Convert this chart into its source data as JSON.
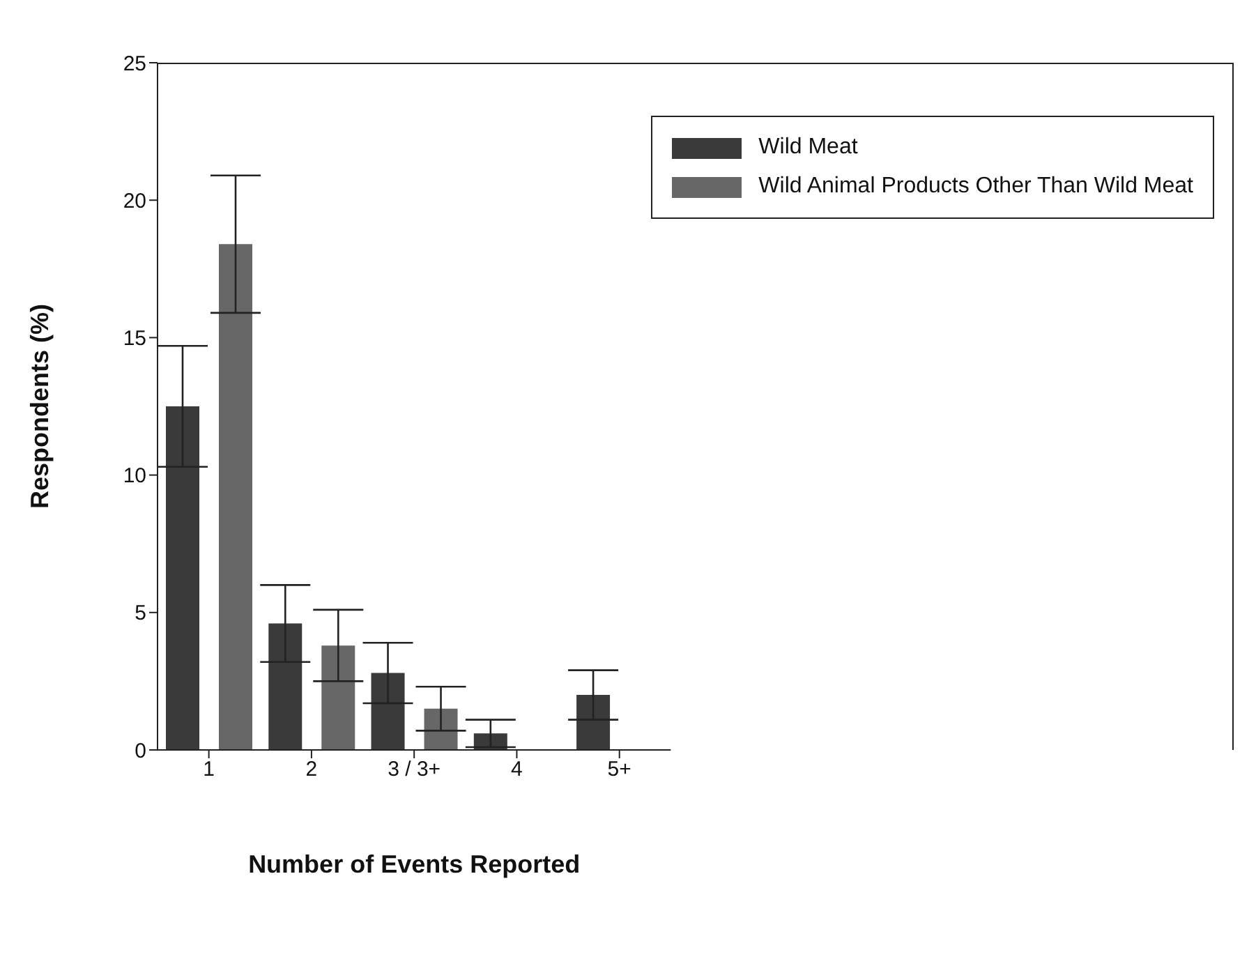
{
  "chart_data": {
    "type": "bar",
    "xlabel": "Number of Events Reported",
    "ylabel": "Respondents (%)",
    "categories": [
      "1",
      "2",
      "3 / 3+",
      "4",
      "5+"
    ],
    "series": [
      {
        "name": "Wild Meat",
        "color": "#3a3a3a",
        "values": [
          12.5,
          4.6,
          2.8,
          0.6,
          2.0
        ],
        "errors": [
          2.2,
          1.4,
          1.1,
          0.5,
          0.9
        ]
      },
      {
        "name": "Wild Animal Products Other Than Wild Meat",
        "color": "#676767",
        "values": [
          18.4,
          3.8,
          1.5,
          null,
          null
        ],
        "errors": [
          2.5,
          1.3,
          0.8,
          null,
          null
        ]
      }
    ],
    "ylim": [
      0,
      25
    ],
    "yticks": [
      0,
      5,
      10,
      15,
      20,
      25
    ],
    "grid": false,
    "legend": "top right"
  }
}
